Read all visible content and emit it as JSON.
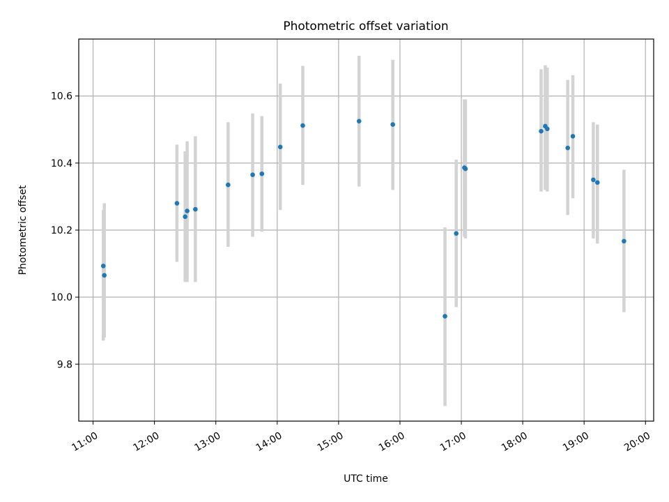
{
  "chart_data": {
    "type": "scatter",
    "title": "Photometric offset variation",
    "xlabel": "UTC time",
    "ylabel": "Photometric offset",
    "xlim": [
      "10:46",
      "20:08"
    ],
    "ylim": [
      9.63,
      10.77
    ],
    "x_ticks": [
      "11:00",
      "12:00",
      "13:00",
      "14:00",
      "15:00",
      "16:00",
      "17:00",
      "18:00",
      "19:00",
      "20:00"
    ],
    "y_ticks": [
      9.8,
      10.0,
      10.2,
      10.4,
      10.6
    ],
    "y_tick_labels": [
      "9.8",
      "10.0",
      "10.2",
      "10.4",
      "10.6"
    ],
    "grid": true,
    "legend": "none",
    "colors": {
      "point": "#1f77b4",
      "errorbar": "#d3d3d3",
      "grid": "#b0b0b0"
    },
    "series": [
      {
        "points": [
          {
            "x": "11:10",
            "y": 10.093,
            "lo": 9.87,
            "hi": 10.26
          },
          {
            "x": "11:11",
            "y": 10.065,
            "lo": 9.88,
            "hi": 10.28
          },
          {
            "x": "12:22",
            "y": 10.28,
            "lo": 10.105,
            "hi": 10.455
          },
          {
            "x": "12:30",
            "y": 10.24,
            "lo": 10.045,
            "hi": 10.435
          },
          {
            "x": "12:32",
            "y": 10.257,
            "lo": 10.045,
            "hi": 10.465
          },
          {
            "x": "12:40",
            "y": 10.262,
            "lo": 10.045,
            "hi": 10.48
          },
          {
            "x": "13:12",
            "y": 10.335,
            "lo": 10.15,
            "hi": 10.522
          },
          {
            "x": "13:36",
            "y": 10.365,
            "lo": 10.18,
            "hi": 10.548
          },
          {
            "x": "13:45",
            "y": 10.368,
            "lo": 10.195,
            "hi": 10.54
          },
          {
            "x": "14:03",
            "y": 10.448,
            "lo": 10.26,
            "hi": 10.637
          },
          {
            "x": "14:25",
            "y": 10.512,
            "lo": 10.335,
            "hi": 10.69
          },
          {
            "x": "15:20",
            "y": 10.525,
            "lo": 10.33,
            "hi": 10.72
          },
          {
            "x": "15:53",
            "y": 10.515,
            "lo": 10.32,
            "hi": 10.708
          },
          {
            "x": "16:44",
            "y": 9.943,
            "lo": 9.675,
            "hi": 10.208
          },
          {
            "x": "16:55",
            "y": 10.19,
            "lo": 9.97,
            "hi": 10.41
          },
          {
            "x": "17:03",
            "y": 10.386,
            "lo": 10.18,
            "hi": 10.59
          },
          {
            "x": "17:04",
            "y": 10.383,
            "lo": 10.175,
            "hi": 10.59
          },
          {
            "x": "18:18",
            "y": 10.495,
            "lo": 10.315,
            "hi": 10.68
          },
          {
            "x": "18:22",
            "y": 10.51,
            "lo": 10.32,
            "hi": 10.692
          },
          {
            "x": "18:24",
            "y": 10.502,
            "lo": 10.315,
            "hi": 10.685
          },
          {
            "x": "18:44",
            "y": 10.445,
            "lo": 10.245,
            "hi": 10.648
          },
          {
            "x": "18:49",
            "y": 10.48,
            "lo": 10.295,
            "hi": 10.662
          },
          {
            "x": "19:09",
            "y": 10.35,
            "lo": 10.175,
            "hi": 10.522
          },
          {
            "x": "19:13",
            "y": 10.342,
            "lo": 10.16,
            "hi": 10.515
          },
          {
            "x": "19:39",
            "y": 10.167,
            "lo": 9.955,
            "hi": 10.38
          }
        ]
      }
    ]
  }
}
